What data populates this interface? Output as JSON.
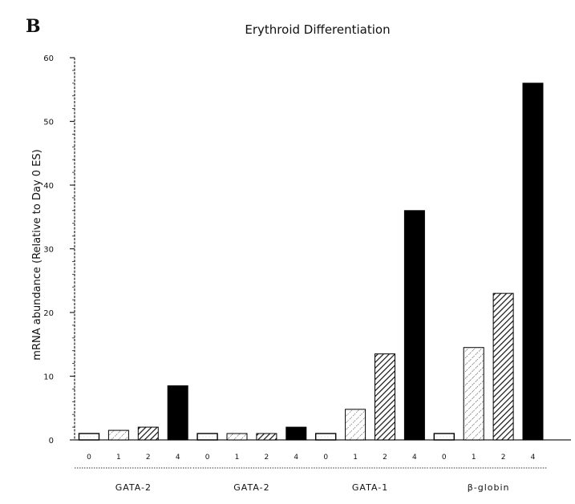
{
  "panel_letter": "B",
  "chart_data": {
    "type": "bar",
    "title": "Erythroid Differentiation",
    "xlabel": "",
    "ylabel": "mRNA abundance (Relative to Day 0 ES)",
    "ylim": [
      0,
      60
    ],
    "yticks": [
      0,
      10,
      20,
      30,
      40,
      50,
      60
    ],
    "grid": false,
    "legend": "none",
    "groups": [
      {
        "name": "GATA-2",
        "categories": [
          "0",
          "1",
          "2",
          "4"
        ],
        "values": [
          1,
          1.5,
          2,
          8.5
        ]
      },
      {
        "name": "GATA-2",
        "categories": [
          "0",
          "1",
          "2",
          "4"
        ],
        "values": [
          1,
          1,
          1,
          2
        ]
      },
      {
        "name": "GATA-1",
        "categories": [
          "0",
          "1",
          "2",
          "4"
        ],
        "values": [
          1,
          4.8,
          13.5,
          36
        ]
      },
      {
        "name": "β-globin",
        "categories": [
          "0",
          "1",
          "2",
          "4"
        ],
        "values": [
          1,
          14.5,
          23,
          56
        ]
      }
    ],
    "bar_fills": [
      "white",
      "light-dots",
      "dense-hatch",
      "solid-black"
    ]
  }
}
